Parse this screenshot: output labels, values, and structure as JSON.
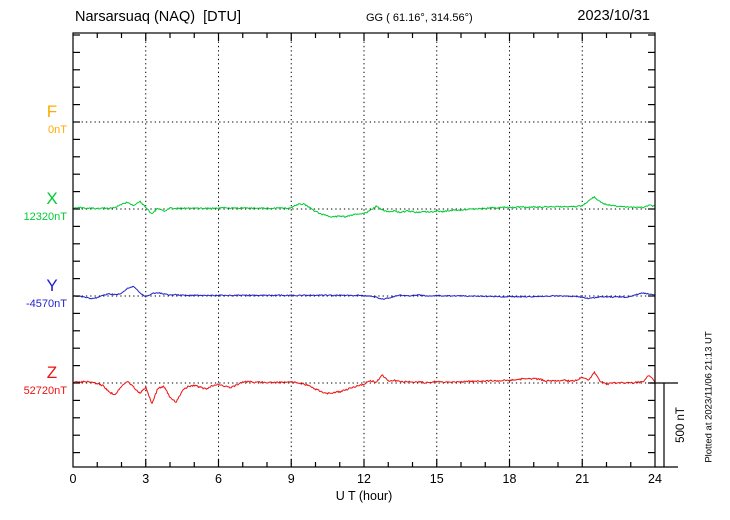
{
  "header": {
    "station_title": "Narsarsuaq (NAQ)  [DTU]",
    "coords": "GG ( 61.16°, 314.56°)",
    "date": "2023/10/31"
  },
  "axis": {
    "xlabel": "U T (hour)",
    "hour_labels": [
      "0",
      "3",
      "6",
      "9",
      "12",
      "15",
      "18",
      "21",
      "24"
    ],
    "scale_bar_label": "500 nT",
    "plotted_note": "Plotted at 2023/11/06 21:13 UT"
  },
  "components": [
    {
      "id": "F",
      "label": "F",
      "baseline_label": "0nT",
      "color": "#ffaa00"
    },
    {
      "id": "X",
      "label": "X",
      "baseline_label": "12320nT",
      "color": "#00cc33"
    },
    {
      "id": "Y",
      "label": "Y",
      "baseline_label": "-4570nT",
      "color": "#2222cc"
    },
    {
      "id": "Z",
      "label": "Z",
      "baseline_label": "52720nT",
      "color": "#ee1111"
    }
  ],
  "chart_data": {
    "type": "line",
    "title": "Narsarsuaq (NAQ) [DTU] magnetogram, 2023/10/31",
    "xlabel": "U T (hour)",
    "x_range_hours": [
      0,
      24
    ],
    "x_tick_step_hours": 1,
    "x_gridline_step_hours": 3,
    "x_start_hours": 0,
    "x_step_hours": 0.25,
    "y_scale_bar_nT": 500,
    "y_minor_tick_nT": 100,
    "grid": "dotted horizontal baseline per component, dotted vertical every 3 h",
    "legend_position": "left margin (component letter with baseline value)",
    "series": [
      {
        "name": "F",
        "baseline_value": "0nT",
        "color": "#ffaa00",
        "noise_nT": 0,
        "values_offset_nT": null,
        "note": "no trace visible (flat / no data plotted)"
      },
      {
        "name": "X",
        "baseline_value": "12320nT",
        "color": "#00cc33",
        "noise_nT": 4,
        "values_offset_nT": [
          5,
          8,
          3,
          5,
          2,
          6,
          3,
          10,
          25,
          40,
          20,
          45,
          10,
          -30,
          5,
          -15,
          5,
          3,
          6,
          4,
          5,
          3,
          5,
          4,
          5,
          6,
          4,
          5,
          6,
          4,
          5,
          5,
          4,
          6,
          5,
          4,
          8,
          25,
          30,
          10,
          -15,
          -30,
          -40,
          -45,
          -40,
          -45,
          -35,
          -30,
          -25,
          -10,
          15,
          -5,
          -15,
          -10,
          -20,
          -12,
          -15,
          -20,
          -15,
          -18,
          -12,
          -15,
          -8,
          -5,
          -8,
          -3,
          0,
          3,
          5,
          8,
          6,
          10,
          8,
          10,
          12,
          10,
          12,
          10,
          13,
          12,
          14,
          12,
          15,
          13,
          20,
          45,
          70,
          40,
          25,
          18,
          15,
          12,
          10,
          8,
          10,
          22,
          15
        ]
      },
      {
        "name": "Y",
        "baseline_value": "-4570nT",
        "color": "#2222cc",
        "noise_nT": 3,
        "values_offset_nT": [
          0,
          -3,
          -5,
          -15,
          -10,
          5,
          12,
          8,
          15,
          45,
          55,
          20,
          -5,
          15,
          18,
          12,
          5,
          8,
          5,
          3,
          4,
          3,
          5,
          4,
          3,
          5,
          4,
          3,
          5,
          4,
          3,
          5,
          4,
          3,
          5,
          4,
          5,
          3,
          5,
          4,
          5,
          4,
          5,
          3,
          4,
          5,
          3,
          4,
          2,
          0,
          -8,
          -18,
          -12,
          -3,
          6,
          0,
          2,
          6,
          2,
          0,
          2,
          0,
          1,
          0,
          1,
          0,
          -1,
          0,
          -2,
          -4,
          -3,
          -5,
          -4,
          -5,
          -3,
          -4,
          -3,
          -2,
          -1,
          0,
          -1,
          0,
          -1,
          -2,
          -8,
          -14,
          -10,
          -6,
          -4,
          -6,
          -5,
          -6,
          -3,
          10,
          18,
          12,
          8
        ]
      },
      {
        "name": "Z",
        "baseline_value": "52720nT",
        "color": "#ee1111",
        "noise_nT": 5,
        "values_offset_nT": [
          3,
          8,
          5,
          8,
          -5,
          -15,
          -55,
          -65,
          -20,
          8,
          -25,
          -60,
          -25,
          -120,
          -30,
          -20,
          -80,
          -110,
          -45,
          -20,
          -15,
          -25,
          -35,
          -15,
          -8,
          -20,
          -25,
          -12,
          5,
          8,
          3,
          5,
          3,
          5,
          4,
          5,
          4,
          3,
          -5,
          -15,
          -35,
          -50,
          -60,
          -55,
          -50,
          -40,
          -25,
          -15,
          -5,
          15,
          5,
          45,
          10,
          15,
          5,
          10,
          3,
          8,
          3,
          6,
          8,
          5,
          8,
          6,
          8,
          10,
          8,
          12,
          10,
          14,
          12,
          15,
          14,
          18,
          22,
          25,
          24,
          22,
          12,
          14,
          12,
          15,
          12,
          14,
          35,
          15,
          60,
          10,
          -8,
          2,
          0,
          2,
          0,
          3,
          5,
          45,
          5
        ]
      }
    ]
  }
}
